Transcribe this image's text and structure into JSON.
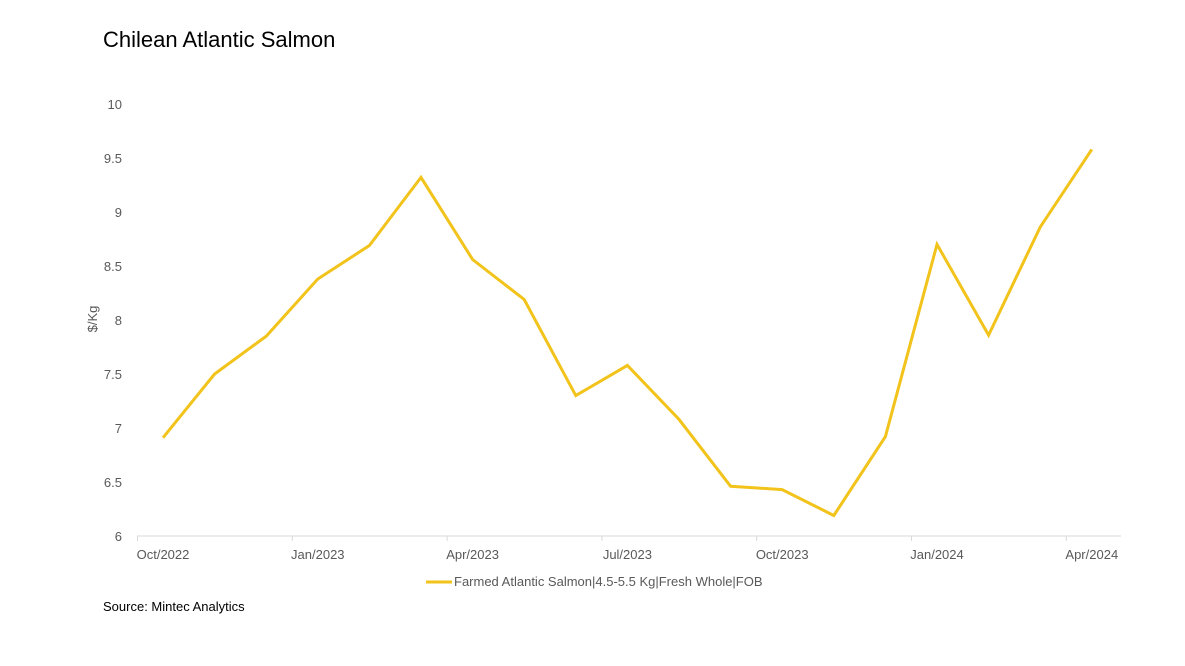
{
  "chart_data": {
    "type": "line",
    "title": "Chilean Atlantic Salmon",
    "ylabel": "$/Kg",
    "xlabel": "",
    "ylim": [
      6,
      10
    ],
    "yticks": [
      "6",
      "6.5",
      "7",
      "7.5",
      "8",
      "8.5",
      "9",
      "9.5",
      "10"
    ],
    "xticks": [
      "Oct/2022",
      "Jan/2023",
      "Apr/2023",
      "Jul/2023",
      "Oct/2023",
      "Jan/2024",
      "Apr/2024"
    ],
    "grid": false,
    "legend_position": "bottom",
    "color": "#F2C31B",
    "x": [
      "2022-10",
      "2022-11",
      "2022-12",
      "2023-01",
      "2023-02",
      "2023-03",
      "2023-04",
      "2023-05",
      "2023-06",
      "2023-07",
      "2023-08",
      "2023-09",
      "2023-10",
      "2023-11",
      "2023-12",
      "2024-01",
      "2024-02",
      "2024-03",
      "2024-04"
    ],
    "series": [
      {
        "name": "Farmed Atlantic Salmon|4.5-5.5 Kg|Fresh Whole|FOB",
        "values": [
          6.91,
          7.5,
          7.85,
          8.38,
          8.69,
          9.32,
          8.56,
          8.19,
          7.3,
          7.58,
          7.08,
          6.46,
          6.43,
          6.19,
          6.92,
          8.7,
          7.86,
          8.86,
          9.58
        ]
      }
    ]
  },
  "source": "Source: Mintec Analytics"
}
